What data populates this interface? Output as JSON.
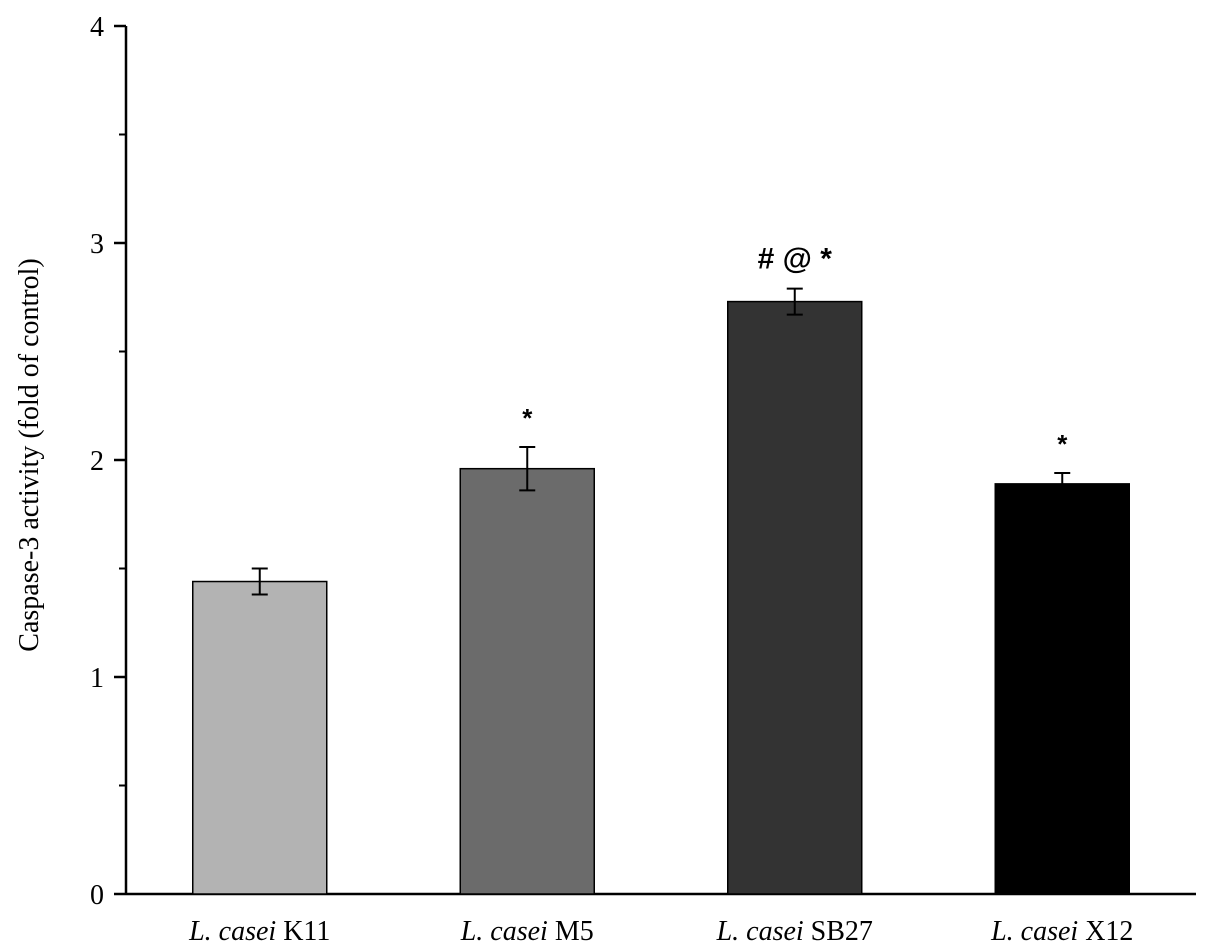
{
  "chart_data": {
    "type": "bar",
    "categories": [
      {
        "italic": "L. casei",
        "rest": "K11"
      },
      {
        "italic": "L. casei",
        "rest": "M5"
      },
      {
        "italic": "L. casei",
        "rest": "SB27"
      },
      {
        "italic": "L. casei",
        "rest": "X12"
      }
    ],
    "values": [
      1.44,
      1.96,
      2.73,
      1.89
    ],
    "errors": [
      0.06,
      0.1,
      0.06,
      0.05
    ],
    "colors": [
      "#b3b3b3",
      "#6b6b6b",
      "#333333",
      "#000000"
    ],
    "annotations": [
      "",
      "*",
      "# @ *",
      "*"
    ],
    "title": "",
    "xlabel": "",
    "ylabel": "Caspase-3 activity (fold of control)",
    "ylim": [
      0,
      4
    ],
    "yticks": [
      0,
      1,
      2,
      3,
      4
    ],
    "grid": false,
    "legend": "none"
  }
}
